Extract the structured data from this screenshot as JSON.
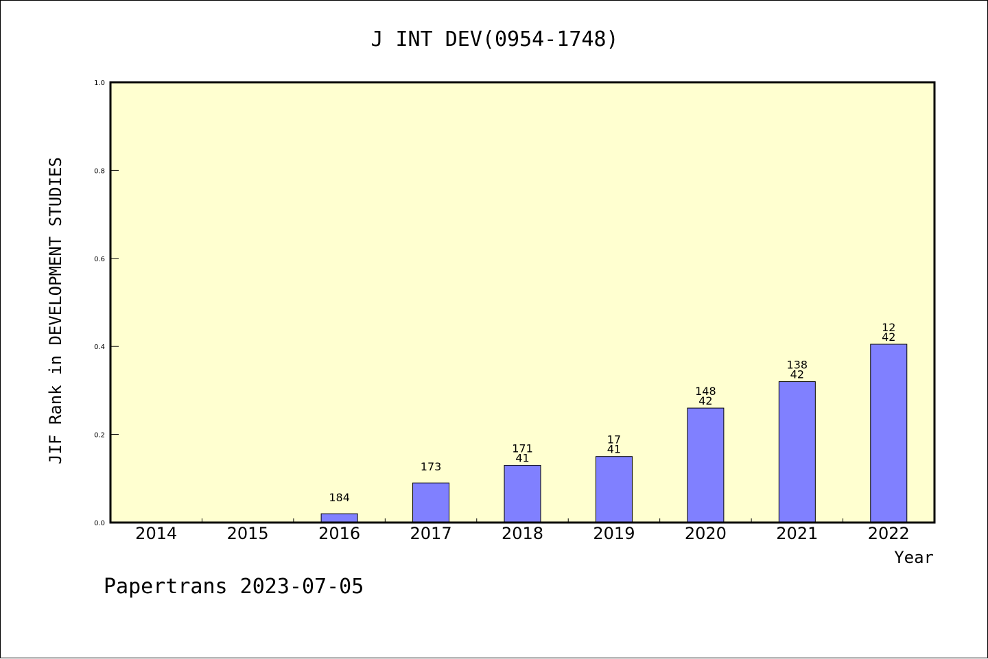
{
  "chart_data": {
    "type": "bar",
    "title": "J INT DEV(0954-1748)",
    "xlabel": "Year",
    "ylabel": "JIF Rank in DEVELOPMENT STUDIES",
    "categories": [
      "2014",
      "2015",
      "2016",
      "2017",
      "2018",
      "2019",
      "2020",
      "2021",
      "2022"
    ],
    "values": [
      null,
      null,
      0.02,
      0.09,
      0.13,
      0.15,
      0.26,
      0.32,
      0.405
    ],
    "data_labels": [
      [],
      [],
      [
        "184"
      ],
      [
        "173"
      ],
      [
        "171",
        "41"
      ],
      [
        "17",
        "41"
      ],
      [
        "148",
        "42"
      ],
      [
        "138",
        "42"
      ],
      [
        "12",
        "42"
      ]
    ],
    "ylim": [
      0,
      1.0
    ],
    "yticks": [
      "0.0",
      "0.2",
      "0.4",
      "0.6",
      "0.8",
      "1.0"
    ],
    "grid": false,
    "colors": {
      "bar": "#8080ff",
      "plot_background": "#ffffd0",
      "axis": "#000000"
    }
  },
  "footer": {
    "text": "Papertrans 2023-07-05"
  }
}
